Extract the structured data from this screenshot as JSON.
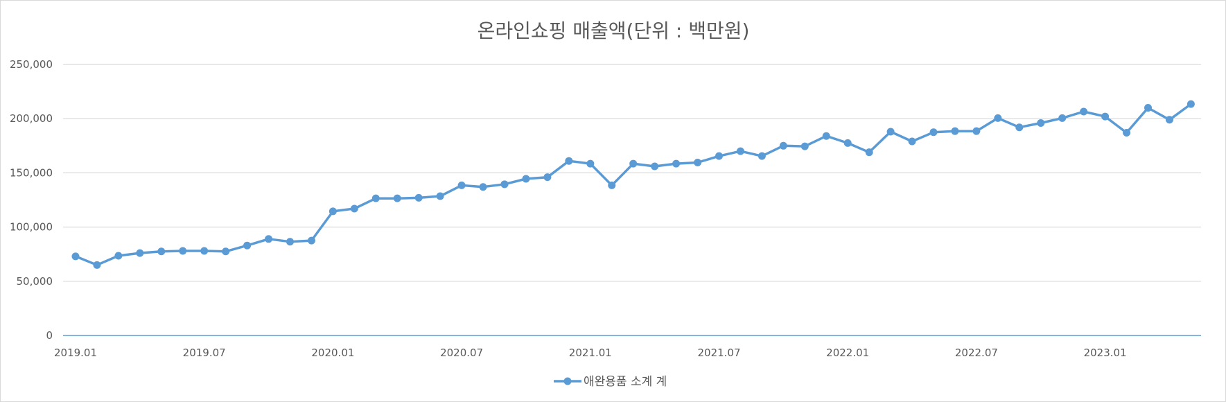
{
  "chart_data": {
    "type": "line",
    "title": "온라인쇼핑 매출액(단위 : 백만원)",
    "xlabel": "",
    "ylabel": "",
    "ylim": [
      0,
      250000
    ],
    "yticks": [
      0,
      50000,
      100000,
      150000,
      200000,
      250000
    ],
    "ytick_labels": [
      "0",
      "50,000",
      "100,000",
      "150,000",
      "200,000",
      "250,000"
    ],
    "xtick_labels": [
      "2019.01",
      "2019.07",
      "2020.01",
      "2020.07",
      "2021.01",
      "2021.07",
      "2022.01",
      "2022.07",
      "2023.01"
    ],
    "grid": true,
    "legend_position": "bottom",
    "x": [
      "2019.01",
      "2019.02",
      "2019.03",
      "2019.04",
      "2019.05",
      "2019.06",
      "2019.07",
      "2019.08",
      "2019.09",
      "2019.10",
      "2019.11",
      "2019.12",
      "2020.01",
      "2020.02",
      "2020.03",
      "2020.04",
      "2020.05",
      "2020.06",
      "2020.07",
      "2020.08",
      "2020.09",
      "2020.10",
      "2020.11",
      "2020.12",
      "2021.01",
      "2021.02",
      "2021.03",
      "2021.04",
      "2021.05",
      "2021.06",
      "2021.07",
      "2021.08",
      "2021.09",
      "2021.10",
      "2021.11",
      "2021.12",
      "2022.01",
      "2022.02",
      "2022.03",
      "2022.04",
      "2022.05",
      "2022.06",
      "2022.07",
      "2022.08",
      "2022.09",
      "2022.10",
      "2022.11",
      "2022.12",
      "2023.01",
      "2023.02",
      "2023.03",
      "2023.04",
      "2023.05"
    ],
    "series": [
      {
        "name": "애완용품 소계 계",
        "color": "#5b9bd5",
        "values": [
          73000,
          65000,
          73500,
          76000,
          77500,
          78000,
          78000,
          77500,
          83000,
          89000,
          86500,
          87500,
          114500,
          117000,
          126500,
          126500,
          127000,
          128500,
          138500,
          137000,
          139500,
          144500,
          146000,
          161000,
          158500,
          138500,
          158500,
          156000,
          158500,
          159500,
          165500,
          170000,
          165500,
          175000,
          174500,
          184000,
          177500,
          169000,
          188000,
          179000,
          187500,
          188500,
          188500,
          200500,
          192000,
          196000,
          200500,
          206500,
          202000,
          187000,
          210000,
          199000,
          213500
        ]
      }
    ]
  }
}
